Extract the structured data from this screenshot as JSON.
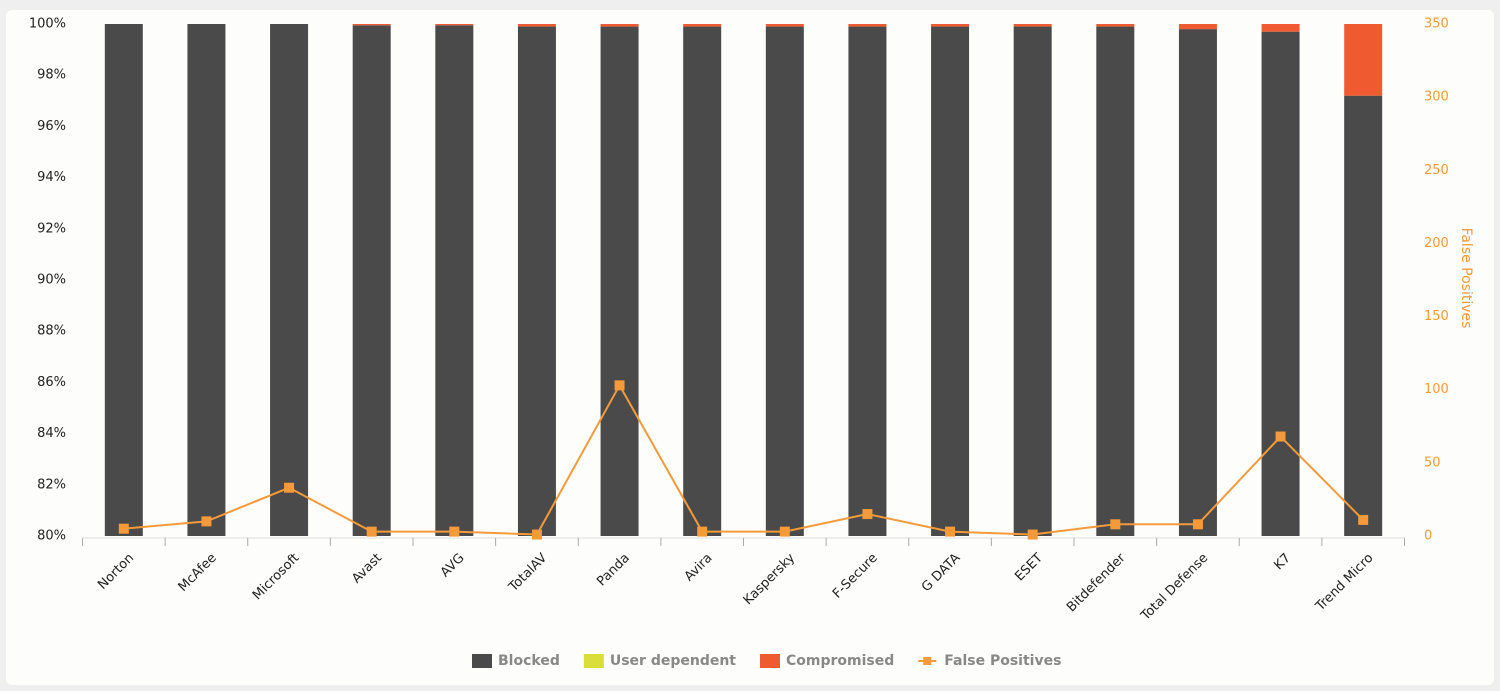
{
  "chart_data": {
    "type": "bar",
    "categories": [
      "Norton",
      "McAfee",
      "Microsoft",
      "Avast",
      "AVG",
      "TotalAV",
      "Panda",
      "Avira",
      "Kaspersky",
      "F-Secure",
      "G DATA",
      "ESET",
      "Bitdefender",
      "Total Defense",
      "K7",
      "Trend Micro"
    ],
    "series": [
      {
        "name": "Blocked",
        "color": "#4a4a4a",
        "values": [
          100,
          100,
          100,
          99.95,
          99.95,
          99.9,
          99.9,
          99.9,
          99.9,
          99.9,
          99.9,
          99.9,
          99.9,
          99.8,
          99.7,
          97.2
        ]
      },
      {
        "name": "User dependent",
        "color": "#d9de3a",
        "values": [
          0,
          0,
          0,
          0,
          0,
          0,
          0,
          0,
          0,
          0,
          0,
          0,
          0,
          0,
          0,
          0
        ]
      },
      {
        "name": "Compromised",
        "color": "#f05a30",
        "values": [
          0,
          0,
          0,
          0.05,
          0.05,
          0.1,
          0.1,
          0.1,
          0.1,
          0.1,
          0.1,
          0.1,
          0.1,
          0.2,
          0.3,
          2.8
        ]
      },
      {
        "name": "False Positives",
        "color": "#f59a3a",
        "type": "line",
        "axis": "y2",
        "values": [
          5,
          10,
          33,
          3,
          3,
          1,
          103,
          3,
          3,
          15,
          3,
          1,
          8,
          8,
          68,
          11
        ]
      }
    ],
    "stacked": true,
    "ylim": [
      80,
      100
    ],
    "yticks": [
      {
        "value": 80,
        "label": "80%"
      },
      {
        "value": 82,
        "label": "82%"
      },
      {
        "value": 84,
        "label": "84%"
      },
      {
        "value": 86,
        "label": "86%"
      },
      {
        "value": 88,
        "label": "88%"
      },
      {
        "value": 90,
        "label": "90%"
      },
      {
        "value": 92,
        "label": "92%"
      },
      {
        "value": 94,
        "label": "94%"
      },
      {
        "value": 96,
        "label": "96%"
      },
      {
        "value": 98,
        "label": "98%"
      },
      {
        "value": 100,
        "label": "100%"
      }
    ],
    "y2lim": [
      0,
      350
    ],
    "y2ticks": [
      0,
      50,
      100,
      150,
      200,
      250,
      300,
      350
    ],
    "y2_label": "False Positives",
    "legend": "bottom"
  }
}
